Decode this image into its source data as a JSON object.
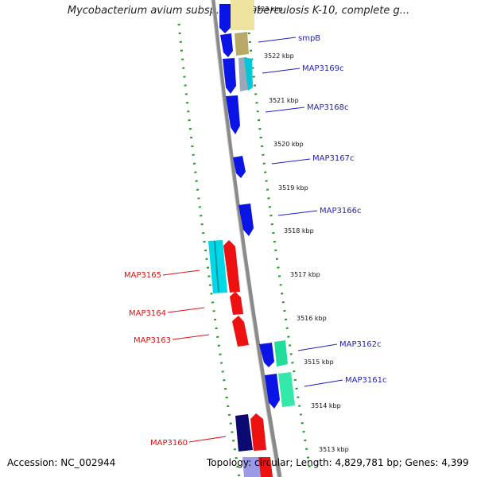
{
  "title": "Mycobacterium avium subsp. paratuberculosis K-10, complete g...",
  "footer": {
    "accession": "Accession: NC_002944",
    "summary": "Topology: circular; Length: 4,829,781 bp; Genes: 4,399"
  },
  "ticks": [
    "3523 kbp",
    "3522 kbp",
    "3521 kbp",
    "3520 kbp",
    "3519 kbp",
    "3518 kbp",
    "3517 kbp",
    "3516 kbp",
    "3515 kbp",
    "3514 kbp",
    "3513 kbp"
  ],
  "forward_labels": [
    "smpB",
    "MAP3169c",
    "MAP3168c",
    "MAP3167c",
    "MAP3166c",
    "MAP3162c",
    "MAP3161c"
  ],
  "reverse_labels": [
    "MAP3165",
    "MAP3164",
    "MAP3163",
    "MAP3160"
  ],
  "colors": {
    "forward_label": "#1f1fbf",
    "reverse_label": "#dd1111",
    "cds_forward": "#0a14e6",
    "cds_reverse": "#ee1111",
    "trna": "#00c8d8",
    "rrna": "#22dd99",
    "misc": "#d8c860",
    "dark_cds": "#0a0a70",
    "backbone": "#8a8a8a",
    "ruler": "#229922"
  }
}
